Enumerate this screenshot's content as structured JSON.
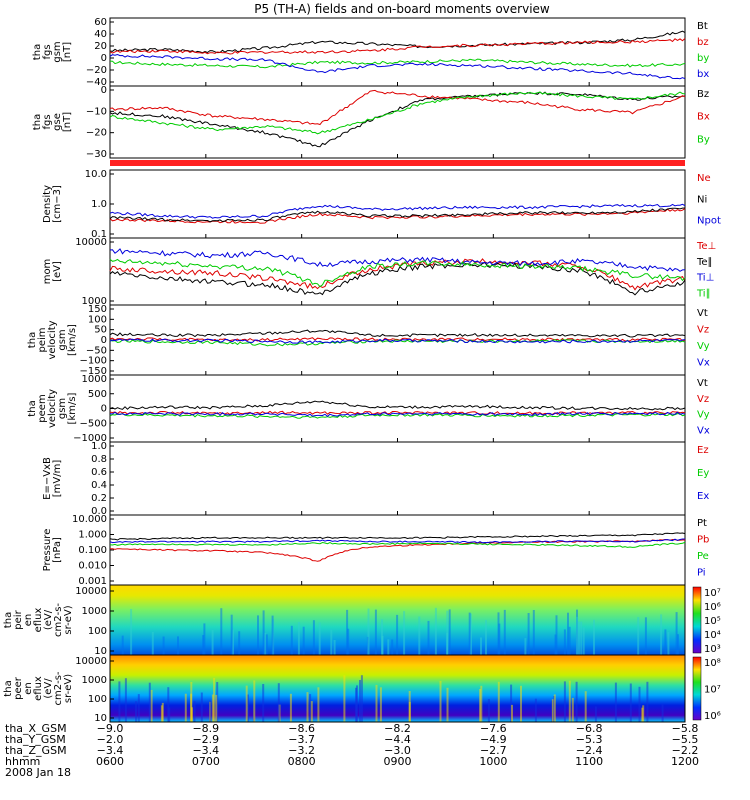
{
  "title": "P5 (TH-A) fields and on-board moments overview",
  "chart_data": {
    "type": "line",
    "x_ticks": [
      "0600",
      "0700",
      "0800",
      "0900",
      "1000",
      "1100",
      "1200"
    ],
    "panels": [
      {
        "ylabel": [
          "tha",
          "fgs",
          "gsm",
          "[nT]"
        ],
        "yticks": [
          "60",
          "40",
          "20",
          "0",
          "−20",
          "−40"
        ],
        "ylim": [
          -40,
          60
        ],
        "scale": "linear",
        "series": [
          {
            "name": "Bt",
            "color": "#000000",
            "values": [
              12,
              14,
              10,
              16,
              25,
              22,
              18,
              20,
              22,
              24,
              28,
              40
            ]
          },
          {
            "name": "bz",
            "color": "#dd0000",
            "values": [
              10,
              12,
              8,
              10,
              10,
              12,
              18,
              20,
              22,
              24,
              25,
              28
            ]
          },
          {
            "name": "by",
            "color": "#00cc00",
            "values": [
              -5,
              -8,
              -10,
              -12,
              -5,
              -6,
              -4,
              -2,
              -5,
              -8,
              -10,
              -8
            ]
          },
          {
            "name": "bx",
            "color": "#0000dd",
            "values": [
              5,
              3,
              0,
              -2,
              -20,
              -10,
              -8,
              -10,
              -14,
              -18,
              -22,
              -30
            ]
          }
        ]
      },
      {
        "ylabel": [
          "tha",
          "fgs",
          "gse",
          "[nT]"
        ],
        "yticks": [
          "0",
          "−10",
          "−20",
          "−30"
        ],
        "ylim": [
          -35,
          8
        ],
        "scale": "linear",
        "series": [
          {
            "name": "Bz",
            "color": "#000000",
            "values": [
              -8,
              -10,
              -15,
              -20,
              -28,
              -12,
              0,
              2,
              4,
              3,
              0,
              2
            ]
          },
          {
            "name": "Bx",
            "color": "#dd0000",
            "values": [
              -6,
              -5,
              -10,
              -12,
              -15,
              5,
              2,
              0,
              -2,
              -6,
              -8,
              2
            ]
          },
          {
            "name": "By",
            "color": "#00cc00",
            "values": [
              -10,
              -14,
              -18,
              -16,
              -20,
              -12,
              -2,
              2,
              4,
              2,
              0,
              4
            ]
          }
        ]
      },
      {
        "ylabel": [
          "Density",
          "[cm−3]"
        ],
        "yticks": [
          "10.0",
          "1.0",
          "0.1"
        ],
        "ylim": [
          0.1,
          10
        ],
        "scale": "log",
        "series": [
          {
            "name": "Ne",
            "color": "#dd0000",
            "values": [
              0.35,
              0.32,
              0.3,
              0.3,
              0.5,
              0.4,
              0.42,
              0.45,
              0.5,
              0.5,
              0.55,
              0.7
            ]
          },
          {
            "name": "Ni",
            "color": "#000000",
            "values": [
              0.4,
              0.35,
              0.32,
              0.35,
              0.6,
              0.45,
              0.45,
              0.5,
              0.55,
              0.55,
              0.6,
              0.75
            ]
          },
          {
            "name": "Npot",
            "color": "#0000dd",
            "values": [
              0.55,
              0.45,
              0.4,
              0.45,
              0.9,
              0.7,
              0.75,
              0.8,
              0.8,
              0.85,
              0.9,
              0.9
            ]
          }
        ]
      },
      {
        "ylabel": [
          "mom",
          "[eV]"
        ],
        "yticks": [
          "10000",
          "1000"
        ],
        "ylim": [
          1000,
          10000
        ],
        "scale": "log",
        "series": [
          {
            "name": "Te⊥",
            "color": "#dd0000",
            "values": [
              3500,
              3200,
              3000,
              2500,
              1800,
              3500,
              4200,
              4500,
              4300,
              3800,
              1800,
              2500
            ]
          },
          {
            "name": "Te∥",
            "color": "#000000",
            "values": [
              3000,
              2500,
              2200,
              2000,
              1400,
              3000,
              3800,
              4000,
              3800,
              3300,
              1500,
              2200
            ]
          },
          {
            "name": "Ti⊥",
            "color": "#0000dd",
            "values": [
              6500,
              6000,
              5500,
              6000,
              4000,
              4500,
              4800,
              4300,
              4200,
              4500,
              3800,
              3200
            ]
          },
          {
            "name": "Ti∥",
            "color": "#00cc00",
            "values": [
              4500,
              4200,
              3800,
              3500,
              2000,
              3800,
              4200,
              4000,
              3800,
              3500,
              2800,
              2500
            ]
          }
        ]
      },
      {
        "ylabel": [
          "tha",
          "peim",
          "velocity",
          "gsm",
          "[km/s]"
        ],
        "yticks": [
          "150",
          "100",
          "50",
          "0",
          "−50",
          "−100",
          "−150"
        ],
        "ylim": [
          -150,
          150
        ],
        "scale": "linear",
        "series": [
          {
            "name": "Vt",
            "color": "#000000",
            "values": [
              25,
              20,
              20,
              30,
              40,
              20,
              20,
              22,
              20,
              20,
              18,
              20
            ]
          },
          {
            "name": "Vz",
            "color": "#dd0000",
            "values": [
              5,
              3,
              0,
              2,
              5,
              3,
              2,
              4,
              3,
              2,
              1,
              3
            ]
          },
          {
            "name": "Vy",
            "color": "#00cc00",
            "values": [
              -5,
              -8,
              -10,
              -20,
              -15,
              -5,
              -5,
              -6,
              -4,
              -5,
              -6,
              -4
            ]
          },
          {
            "name": "Vx",
            "color": "#0000dd",
            "values": [
              0,
              -2,
              -3,
              -5,
              -10,
              -2,
              -3,
              -5,
              -8,
              -6,
              -4,
              -3
            ]
          }
        ]
      },
      {
        "ylabel": [
          "tha",
          "peem",
          "velocity",
          "gsm",
          "[km/s]"
        ],
        "yticks": [
          "1000",
          "500",
          "0",
          "−500",
          "−1000"
        ],
        "ylim": [
          -1000,
          1300
        ],
        "scale": "linear",
        "series": [
          {
            "name": "Vt",
            "color": "#000000",
            "values": [
              150,
              200,
              180,
              250,
              400,
              200,
              200,
              220,
              180,
              160,
              150,
              150
            ]
          },
          {
            "name": "Vz",
            "color": "#dd0000",
            "values": [
              0,
              10,
              -20,
              10,
              0,
              0,
              10,
              0,
              -10,
              0,
              0,
              0
            ]
          },
          {
            "name": "Vy",
            "color": "#00cc00",
            "values": [
              -60,
              -80,
              -100,
              -120,
              -150,
              -80,
              -70,
              -90,
              -100,
              -80,
              -70,
              -60
            ]
          },
          {
            "name": "Vx",
            "color": "#0000dd",
            "values": [
              -20,
              -30,
              -40,
              -30,
              -100,
              -40,
              -30,
              -40,
              -50,
              -30,
              -30,
              -20
            ]
          }
        ]
      },
      {
        "ylabel": [
          "E=−VxB",
          "[mV/m]"
        ],
        "yticks": [
          "1.0",
          "0.8",
          "0.6",
          "0.4",
          "0.2",
          "0.0"
        ],
        "ylim": [
          0,
          1
        ],
        "scale": "linear",
        "series": [
          {
            "name": "Ez",
            "color": "#dd0000",
            "values": []
          },
          {
            "name": "Ey",
            "color": "#00cc00",
            "values": []
          },
          {
            "name": "Ex",
            "color": "#0000dd",
            "values": []
          }
        ]
      },
      {
        "ylabel": [
          "Pressure",
          "[nPa]"
        ],
        "yticks": [
          "10.000",
          "1.000",
          "0.100",
          "0.010",
          "0.001"
        ],
        "ylim": [
          0.001,
          10
        ],
        "scale": "log",
        "series": [
          {
            "name": "Pt",
            "color": "#000000",
            "values": [
              0.4,
              0.45,
              0.5,
              0.5,
              0.5,
              0.5,
              0.5,
              0.55,
              0.6,
              0.65,
              0.7,
              0.9
            ]
          },
          {
            "name": "Pb",
            "color": "#dd0000",
            "values": [
              0.12,
              0.1,
              0.09,
              0.07,
              0.02,
              0.15,
              0.2,
              0.25,
              0.28,
              0.3,
              0.32,
              0.4
            ]
          },
          {
            "name": "Pe",
            "color": "#00cc00",
            "values": [
              0.2,
              0.22,
              0.2,
              0.2,
              0.25,
              0.22,
              0.24,
              0.22,
              0.2,
              0.18,
              0.15,
              0.25
            ]
          },
          {
            "name": "Pi",
            "color": "#0000dd",
            "values": [
              0.28,
              0.3,
              0.3,
              0.3,
              0.35,
              0.3,
              0.3,
              0.28,
              0.3,
              0.32,
              0.3,
              0.4
            ]
          }
        ]
      }
    ],
    "spectrograms": [
      {
        "ylabel": [
          "tha",
          "peir",
          "en",
          "eflux",
          "(eV/",
          "cm2-s-",
          "sr-eV)"
        ],
        "yticks": [
          "10000",
          "1000",
          "100",
          "10"
        ],
        "colorbar_ticks": [
          "10⁷",
          "10⁶",
          "10⁵",
          "10⁴",
          "10³"
        ]
      },
      {
        "ylabel": [
          "tha",
          "peer",
          "en",
          "eflux",
          "(eV/",
          "cm2-s-",
          "sr-eV)"
        ],
        "yticks": [
          "10000",
          "1000",
          "100",
          "10"
        ],
        "colorbar_ticks": [
          "10⁸",
          "10⁷",
          "10⁶"
        ]
      }
    ],
    "ephemeris": [
      {
        "label": "tha_X_GSM",
        "values": [
          "−9.0",
          "−8.9",
          "−8.6",
          "−8.2",
          "−7.6",
          "−6.8",
          "−5.8"
        ]
      },
      {
        "label": "tha_Y_GSM",
        "values": [
          "−2.0",
          "−2.9",
          "−3.7",
          "−4.4",
          "−4.9",
          "−5.3",
          "−5.5"
        ]
      },
      {
        "label": "tha_Z_GSM",
        "values": [
          "−3.4",
          "−3.4",
          "−3.2",
          "−3.0",
          "−2.7",
          "−2.4",
          "−2.2"
        ]
      }
    ],
    "footer_label": "hhmm",
    "date": "2008 Jan 18"
  }
}
